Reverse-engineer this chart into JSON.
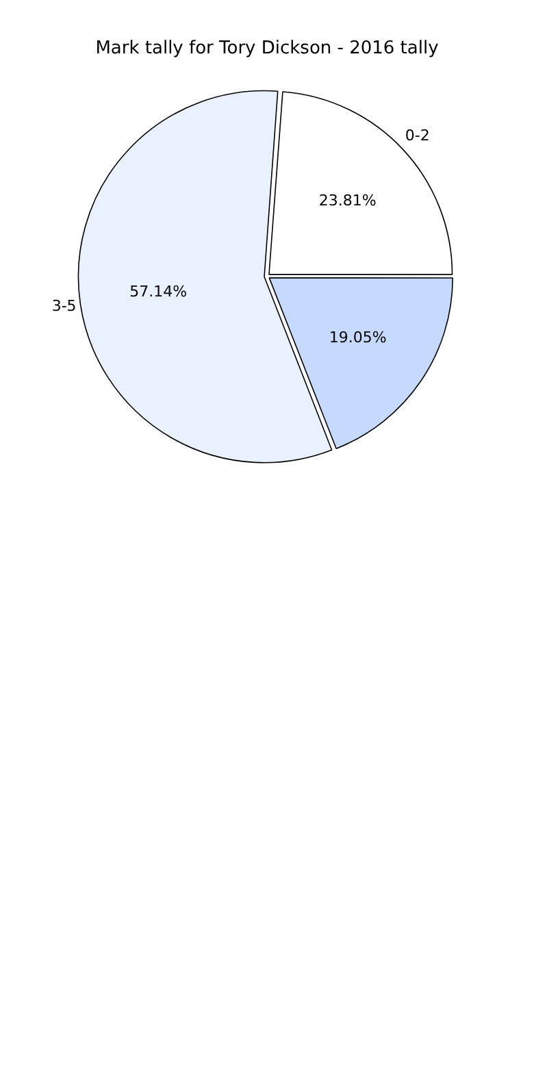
{
  "chart_data": {
    "type": "pie",
    "title": "Mark tally for Tory Dickson - 2016 tally",
    "categories": [
      "0-2",
      null,
      "3-5"
    ],
    "values": [
      23.81,
      19.05,
      57.14
    ],
    "value_labels": [
      "23.81%",
      "19.05%",
      "57.14%"
    ],
    "colors": [
      "#ffffff",
      "#c6d9fe",
      "#eaf1fe"
    ],
    "legend": false
  }
}
